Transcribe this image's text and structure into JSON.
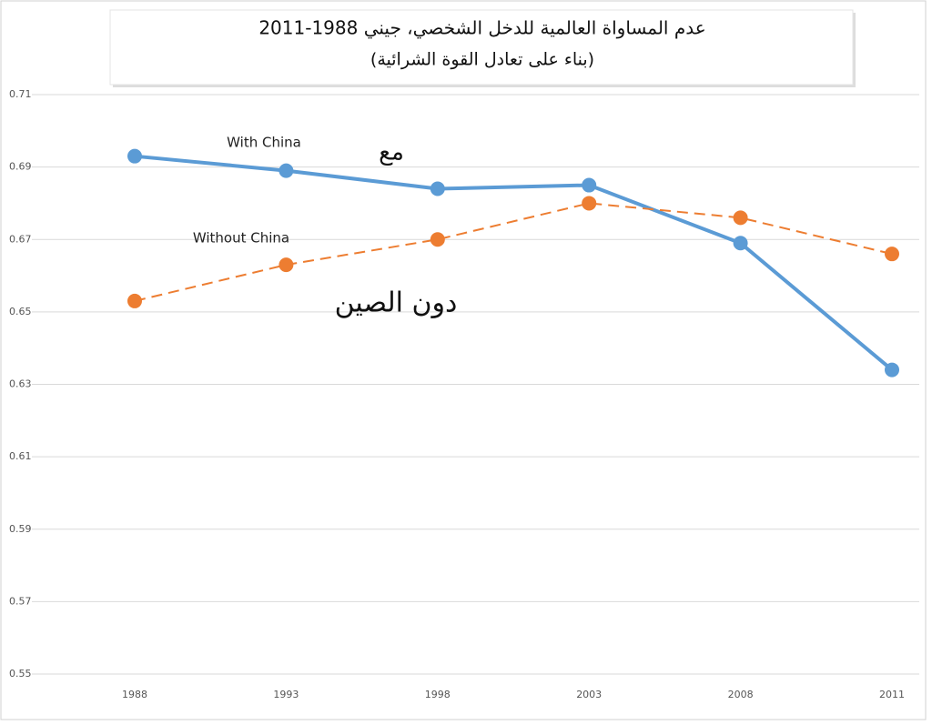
{
  "chart_data": {
    "type": "line",
    "title": "عدم المساواة العالمية للدخل الشخصي، جيني 1988-2011",
    "subtitle": "(بناء على تعادل القوة الشرائية)",
    "categories": [
      "1988",
      "1993",
      "1998",
      "2003",
      "2008",
      "2011"
    ],
    "series": [
      {
        "name": "With China",
        "color": "#5b9bd5",
        "line_style": "solid",
        "values": [
          0.693,
          0.689,
          0.684,
          0.685,
          0.669,
          0.634
        ]
      },
      {
        "name": "Without China",
        "color": "#ed7d31",
        "line_style": "dashed",
        "values": [
          0.653,
          0.663,
          0.67,
          0.68,
          0.676,
          0.666
        ]
      }
    ],
    "annotations": [
      "مع",
      "دون الصين"
    ],
    "ylim": [
      0.55,
      0.71
    ],
    "yticks": [
      0.55,
      0.57,
      0.59,
      0.61,
      0.63,
      0.65,
      0.67,
      0.69,
      0.71
    ],
    "grid": true
  }
}
